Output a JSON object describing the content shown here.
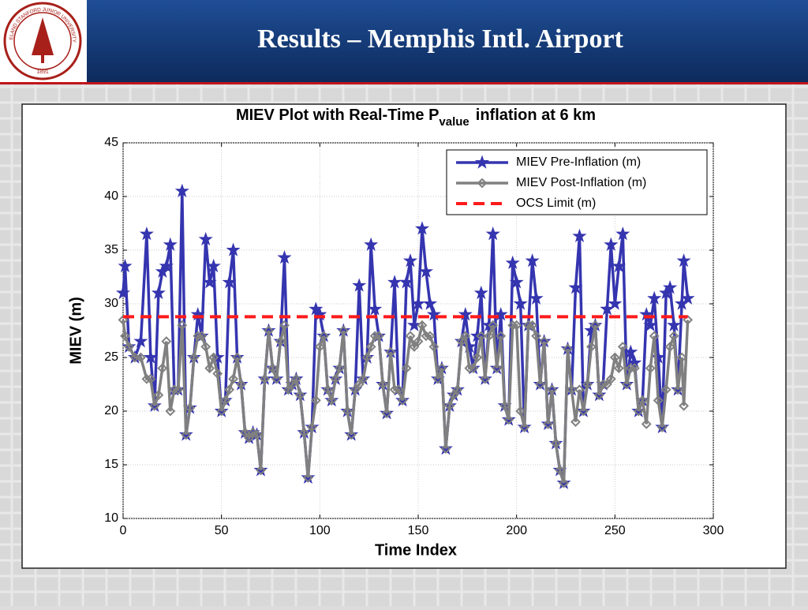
{
  "slide": {
    "title": "Results – Memphis Intl. Airport",
    "logo": {
      "name": "LELAND STANFORD JUNIOR UNIVERSITY",
      "year": "1891"
    }
  },
  "chart_data": {
    "type": "line",
    "title": {
      "main": "MIEV Plot with Real-Time P",
      "subscript": "value",
      "rest": "inflation at 6 km"
    },
    "x_label": "Time Index",
    "y_label": "MIEV (m)",
    "xlim": [
      0,
      300
    ],
    "xticks": [
      0,
      50,
      100,
      150,
      200,
      250,
      300
    ],
    "ylim": [
      10,
      45
    ],
    "yticks": [
      10,
      15,
      20,
      25,
      30,
      35,
      40,
      45
    ],
    "grid": true,
    "legend": "top-right",
    "series": [
      {
        "name": "MIEV Pre-Inflation (m)",
        "color": "#3535b0",
        "marker": "star",
        "x": [
          0,
          1,
          3,
          6,
          9,
          12,
          14,
          16,
          18,
          20,
          22,
          24,
          26,
          28,
          30,
          32,
          34,
          36,
          38,
          40,
          42,
          44,
          46,
          48,
          50,
          52,
          54,
          56,
          58,
          60,
          62,
          64,
          66,
          68,
          70,
          72,
          74,
          76,
          78,
          80,
          82,
          84,
          86,
          88,
          90,
          92,
          94,
          96,
          98,
          100,
          102,
          104,
          106,
          108,
          110,
          112,
          114,
          116,
          118,
          120,
          122,
          124,
          126,
          128,
          130,
          132,
          134,
          136,
          138,
          140,
          142,
          144,
          146,
          148,
          150,
          152,
          154,
          156,
          158,
          160,
          162,
          164,
          166,
          168,
          170,
          172,
          174,
          176,
          178,
          180,
          182,
          184,
          186,
          188,
          190,
          192,
          194,
          196,
          198,
          200,
          202,
          204,
          206,
          208,
          210,
          212,
          214,
          216,
          218,
          220,
          222,
          224,
          226,
          228,
          230,
          232,
          234,
          236,
          238,
          240,
          242,
          244,
          246,
          248,
          250,
          252,
          254,
          256,
          258,
          260,
          262,
          264,
          266,
          268,
          270,
          272,
          274,
          276,
          278,
          280,
          282,
          284,
          285,
          287
        ],
        "values": [
          31,
          33.5,
          26,
          25,
          26.5,
          36.5,
          25,
          20.5,
          31,
          33,
          33.5,
          35.5,
          22,
          22,
          40.5,
          17.8,
          20.3,
          25,
          29,
          27,
          36,
          32,
          33.5,
          25,
          20,
          21,
          32,
          35,
          25,
          22.5,
          18,
          17.5,
          18,
          17.8,
          14.5,
          23,
          27.5,
          24,
          23,
          26.5,
          34.3,
          22,
          22.5,
          23,
          21.5,
          18,
          13.8,
          18.5,
          29.5,
          29,
          27,
          22,
          21,
          23,
          24,
          27.5,
          20,
          17.8,
          22,
          31.7,
          23,
          25,
          35.5,
          29.5,
          27,
          22.5,
          19.8,
          25.5,
          32,
          22,
          21,
          32,
          34,
          28,
          30,
          37,
          33,
          30,
          29,
          23,
          24,
          16.5,
          20.5,
          21.5,
          22,
          26.5,
          29,
          26,
          24,
          27,
          31,
          23,
          28,
          36.5,
          24,
          29,
          20.5,
          19.2,
          33.8,
          32,
          30,
          18.5,
          28,
          34,
          30.5,
          22.5,
          26.5,
          18.8,
          22,
          17,
          14.5,
          13.3,
          25.8,
          22,
          31.5,
          36.3,
          20,
          22.5,
          27.5,
          28,
          21.5,
          22.5,
          29.5,
          35.5,
          30,
          33.5,
          36.5,
          22.5,
          25.5,
          24.5,
          20,
          21,
          29,
          28,
          30.5,
          25,
          18.5,
          31,
          31.5,
          28,
          22,
          30,
          34,
          30.5
        ]
      },
      {
        "name": "MIEV Post-Inflation (m)",
        "color": "#808080",
        "marker": "diamond",
        "x": [
          0,
          1,
          3,
          6,
          9,
          12,
          14,
          16,
          18,
          20,
          22,
          24,
          26,
          28,
          30,
          32,
          34,
          36,
          38,
          40,
          42,
          44,
          46,
          48,
          50,
          52,
          54,
          56,
          58,
          60,
          62,
          64,
          66,
          68,
          70,
          72,
          74,
          76,
          78,
          80,
          82,
          84,
          86,
          88,
          90,
          92,
          94,
          96,
          98,
          100,
          102,
          104,
          106,
          108,
          110,
          112,
          114,
          116,
          118,
          120,
          122,
          124,
          126,
          128,
          130,
          132,
          134,
          136,
          138,
          140,
          142,
          144,
          146,
          148,
          150,
          152,
          154,
          156,
          158,
          160,
          162,
          164,
          166,
          168,
          170,
          172,
          174,
          176,
          178,
          180,
          182,
          184,
          186,
          188,
          190,
          192,
          194,
          196,
          198,
          200,
          202,
          204,
          206,
          208,
          210,
          212,
          214,
          216,
          218,
          220,
          222,
          224,
          226,
          228,
          230,
          232,
          234,
          236,
          238,
          240,
          242,
          244,
          246,
          248,
          250,
          252,
          254,
          256,
          258,
          260,
          262,
          264,
          266,
          268,
          270,
          272,
          274,
          276,
          278,
          280,
          282,
          284,
          285,
          287
        ],
        "values": [
          28.5,
          27,
          26,
          25,
          25,
          23,
          23,
          20.5,
          21.5,
          24,
          26.5,
          20,
          22,
          22,
          28,
          17.8,
          20.3,
          25,
          27,
          27,
          26,
          24,
          25,
          23.5,
          20,
          21,
          22,
          23,
          25,
          22.5,
          18,
          17.5,
          18,
          17.8,
          14.5,
          23,
          27.5,
          24,
          23,
          26.5,
          28,
          22,
          22.5,
          23,
          21.5,
          18,
          13.8,
          18.5,
          21,
          26,
          27,
          22,
          21,
          23,
          24,
          27.5,
          20,
          17.8,
          22,
          22.5,
          23,
          25,
          26,
          27,
          27,
          22.5,
          19.8,
          25.5,
          22,
          22,
          21,
          24,
          27,
          26,
          26.5,
          28,
          27,
          27,
          26,
          23,
          24,
          16.5,
          20.5,
          21.5,
          22,
          26.5,
          27,
          24,
          24,
          25,
          27,
          23,
          27,
          28,
          24,
          27,
          20.5,
          19.2,
          28,
          28,
          20,
          18.5,
          28,
          28,
          27,
          22.5,
          26.5,
          18.8,
          22,
          17,
          14.5,
          13.3,
          25.8,
          22,
          19,
          22,
          20,
          22.5,
          26,
          28,
          21.5,
          22.5,
          22.5,
          23,
          25,
          24,
          26,
          22.5,
          24,
          24,
          20,
          21,
          18.8,
          24,
          27,
          21,
          18.5,
          22,
          26,
          27,
          22,
          25,
          20.5,
          28.5
        ]
      },
      {
        "name": "OCS Limit (m)",
        "color": "#ff1a1a",
        "marker": "none",
        "dashed": true,
        "x": [
          0,
          287
        ],
        "values": [
          28.8,
          28.8
        ]
      }
    ]
  }
}
